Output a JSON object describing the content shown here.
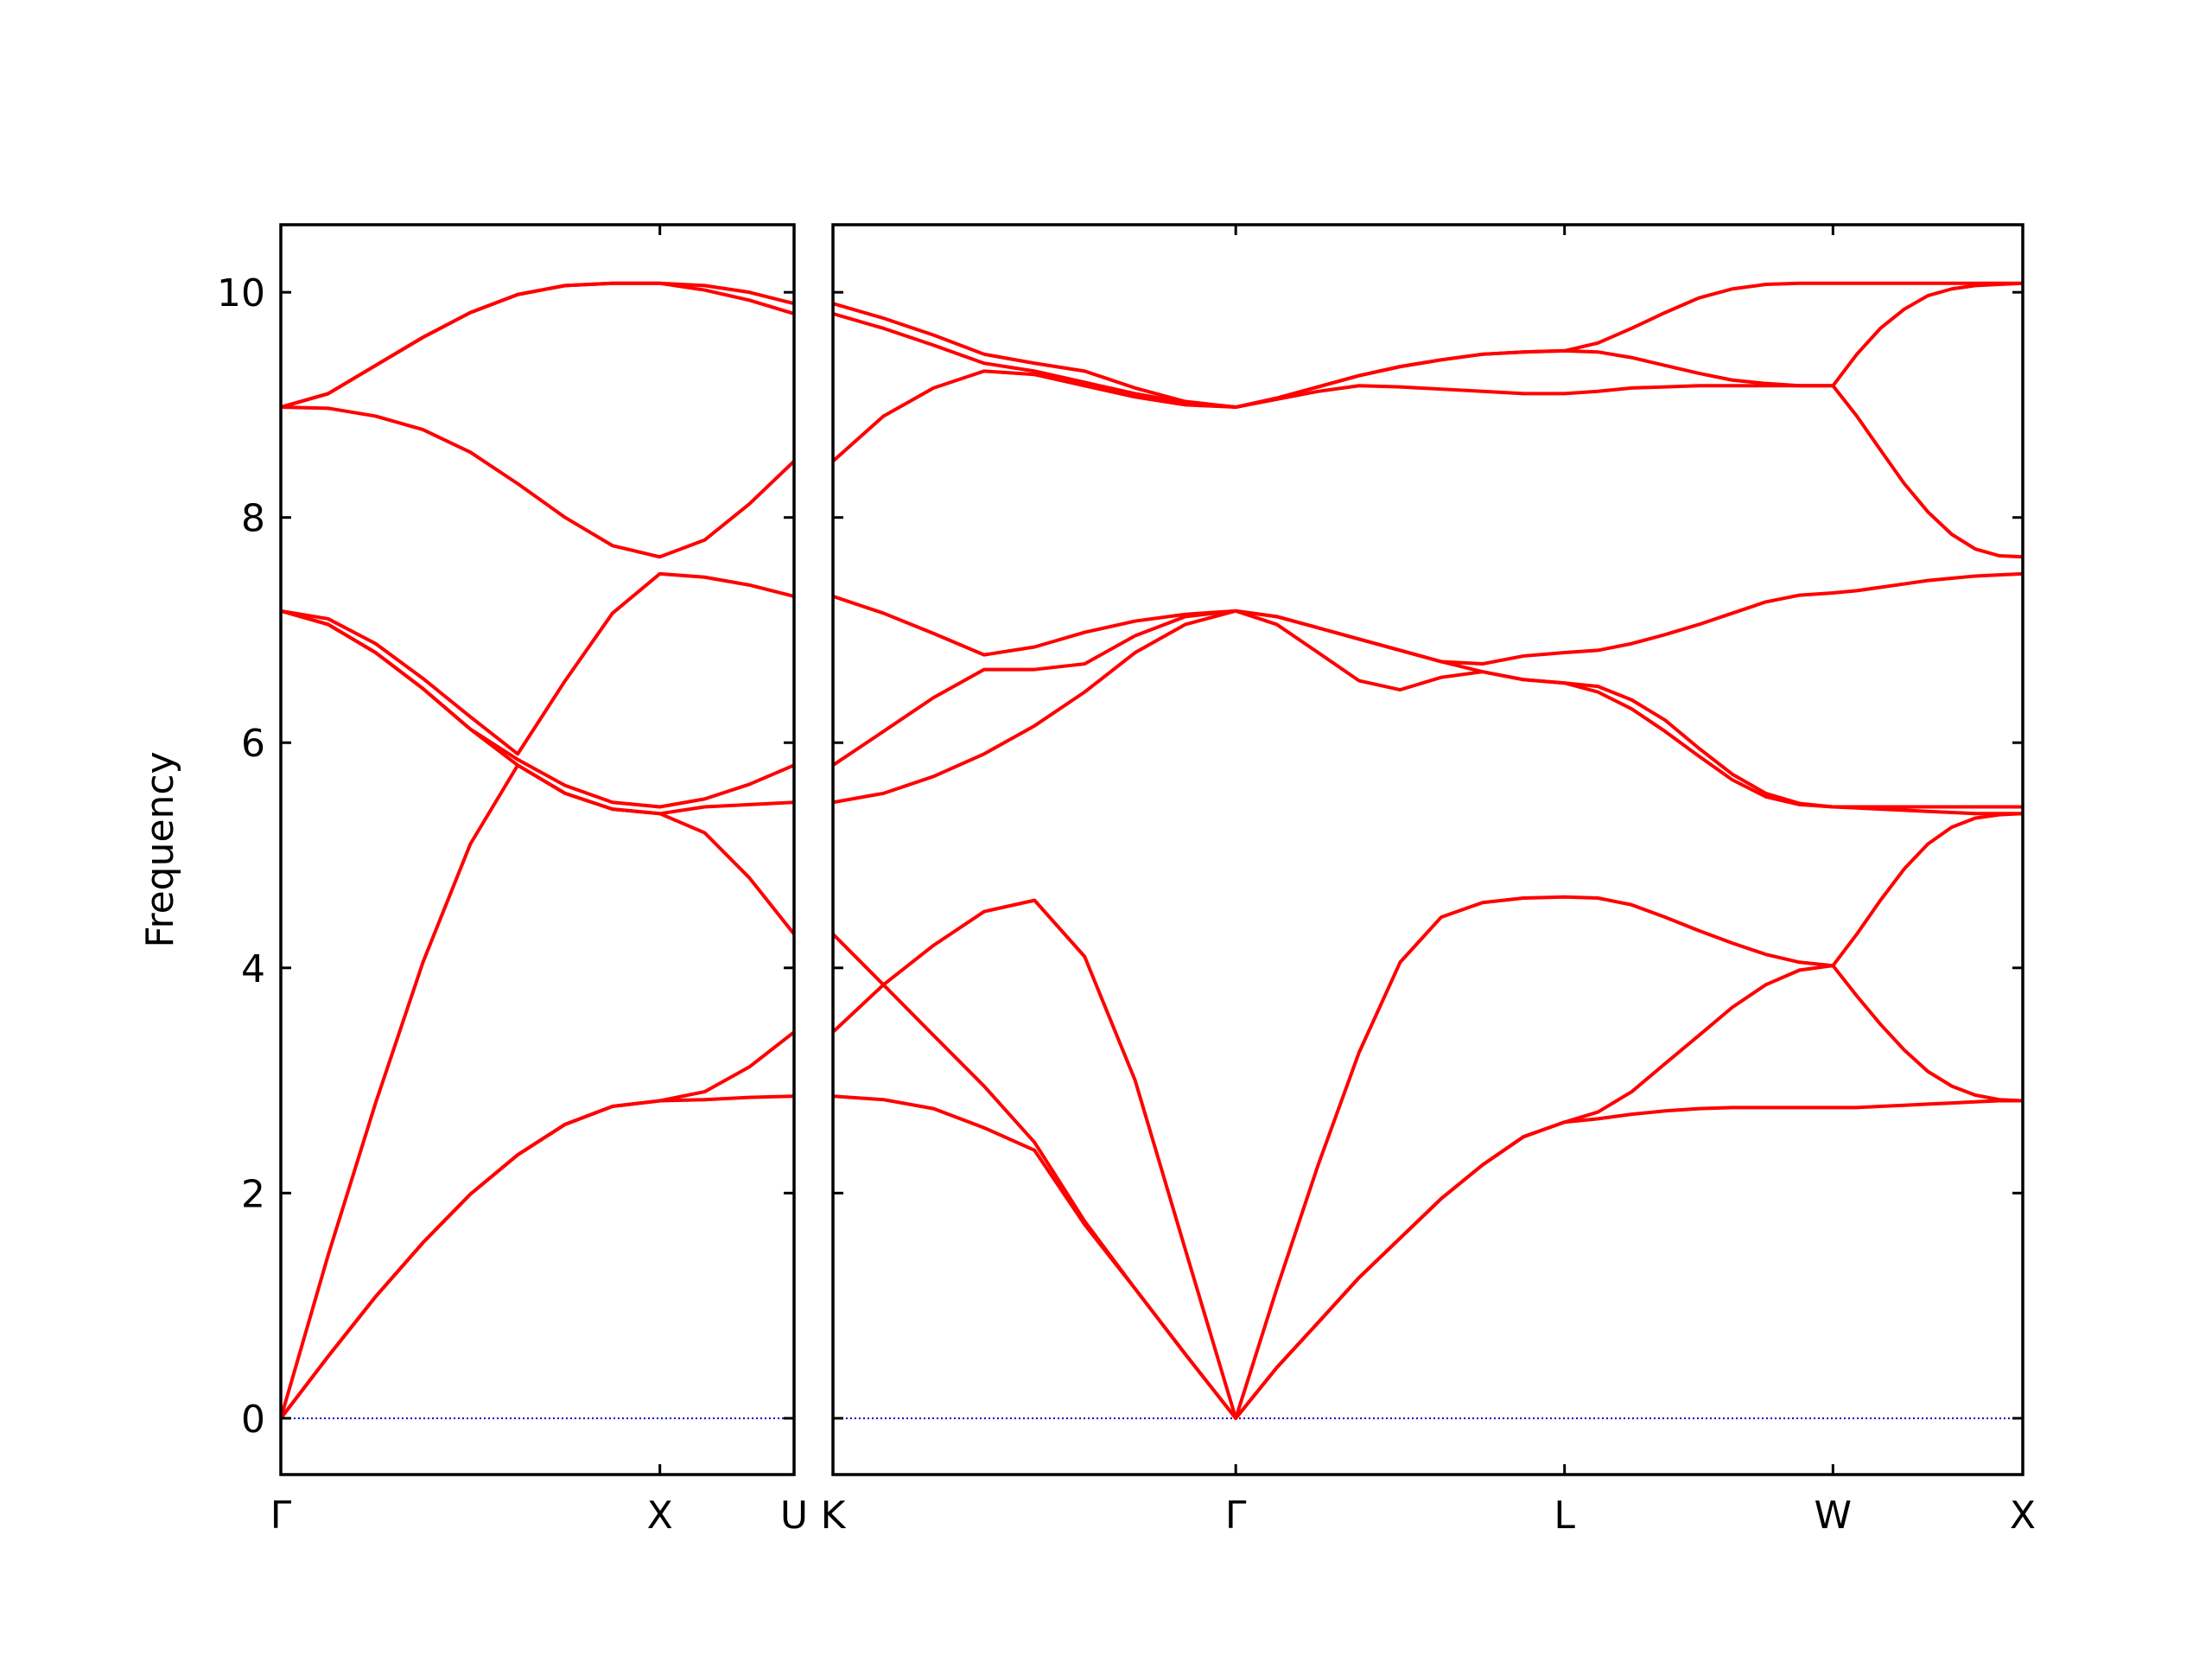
{
  "chart_data": [
    {
      "type": "line",
      "y_label": "Frequency",
      "x": [
        0,
        0.125,
        0.25,
        0.375,
        0.5,
        0.625,
        0.75,
        0.875,
        1,
        1.118,
        1.236,
        1.354
      ],
      "xlim": [
        0,
        1.354
      ],
      "xticks": [
        {
          "value": 0,
          "label": "Γ"
        },
        {
          "value": 1,
          "label": "X"
        },
        {
          "value": 1.354,
          "label": "U"
        }
      ],
      "ylim": [
        -0.5,
        10.6
      ],
      "yticks": [
        0,
        2,
        4,
        6,
        8,
        10
      ],
      "show_ytick_labels": true,
      "hlines": [
        {
          "value": 0,
          "color": "#0000cc",
          "style": "dotted"
        }
      ],
      "series": [
        {
          "color": "#ff0000",
          "values": [
            0,
            0.55,
            1.08,
            1.56,
            1.99,
            2.34,
            2.61,
            2.77,
            2.82,
            2.83,
            2.85,
            2.86
          ]
        },
        {
          "color": "#ff0000",
          "values": [
            0,
            0.55,
            1.08,
            1.56,
            1.99,
            2.34,
            2.61,
            2.77,
            2.82,
            2.9,
            3.12,
            3.43
          ]
        },
        {
          "color": "#ff0000",
          "values": [
            0,
            1.45,
            2.8,
            4.05,
            5.1,
            5.8,
            5.55,
            5.41,
            5.37,
            5.2,
            4.8,
            4.3
          ]
        },
        {
          "color": "#ff0000",
          "values": [
            7.17,
            7.05,
            6.8,
            6.48,
            6.12,
            5.8,
            5.55,
            5.41,
            5.37,
            5.43,
            5.45,
            5.47
          ]
        },
        {
          "color": "#ff0000",
          "values": [
            7.17,
            7.05,
            6.8,
            6.48,
            6.12,
            5.85,
            5.62,
            5.47,
            5.43,
            5.5,
            5.63,
            5.8
          ]
        },
        {
          "color": "#ff0000",
          "values": [
            7.17,
            7.1,
            6.88,
            6.57,
            6.23,
            5.9,
            6.55,
            7.15,
            7.5,
            7.47,
            7.4,
            7.3
          ]
        },
        {
          "color": "#ff0000",
          "values": [
            8.98,
            8.97,
            8.9,
            8.78,
            8.58,
            8.3,
            8.0,
            7.75,
            7.65,
            7.8,
            8.12,
            8.5
          ]
        },
        {
          "color": "#ff0000",
          "values": [
            8.98,
            9.1,
            9.35,
            9.6,
            9.82,
            9.98,
            10.06,
            10.08,
            10.08,
            10.02,
            9.93,
            9.81
          ]
        },
        {
          "color": "#ff0000",
          "values": [
            8.98,
            9.1,
            9.35,
            9.6,
            9.82,
            9.98,
            10.06,
            10.08,
            10.08,
            10.06,
            10.0,
            9.9
          ]
        }
      ]
    },
    {
      "type": "line",
      "x": [
        0,
        0.133,
        0.265,
        0.398,
        0.531,
        0.663,
        0.796,
        0.928,
        1.061,
        1.169,
        1.278,
        1.386,
        1.494,
        1.602,
        1.711,
        1.819,
        1.927,
        2.015,
        2.104,
        2.192,
        2.281,
        2.369,
        2.457,
        2.546,
        2.634,
        2.697,
        2.759,
        2.822,
        2.884,
        2.947,
        3.009,
        3.072,
        3.134
      ],
      "xlim": [
        0,
        3.134
      ],
      "xticks": [
        {
          "value": 0,
          "label": "K"
        },
        {
          "value": 1.061,
          "label": "Γ"
        },
        {
          "value": 1.927,
          "label": "L"
        },
        {
          "value": 2.634,
          "label": "W"
        },
        {
          "value": 3.134,
          "label": "X"
        }
      ],
      "ylim": [
        -0.5,
        10.6
      ],
      "yticks": [
        0,
        2,
        4,
        6,
        8,
        10
      ],
      "show_ytick_labels": false,
      "hlines": [
        {
          "value": 0,
          "color": "#0000cc",
          "style": "dotted"
        }
      ],
      "series": [
        {
          "color": "#ff0000",
          "values": [
            2.86,
            2.83,
            2.75,
            2.58,
            2.38,
            1.72,
            1.15,
            0.57,
            0,
            0.45,
            0.85,
            1.25,
            1.6,
            1.95,
            2.25,
            2.5,
            2.63,
            2.66,
            2.7,
            2.73,
            2.75,
            2.76,
            2.76,
            2.76,
            2.76,
            2.76,
            2.77,
            2.78,
            2.79,
            2.8,
            2.81,
            2.82,
            2.82
          ]
        },
        {
          "color": "#ff0000",
          "values": [
            3.43,
            3.85,
            3.4,
            2.95,
            2.45,
            1.75,
            1.15,
            0.57,
            0,
            0.45,
            0.85,
            1.25,
            1.6,
            1.95,
            2.25,
            2.5,
            2.63,
            2.72,
            2.9,
            3.15,
            3.4,
            3.65,
            3.85,
            3.98,
            4.02,
            3.75,
            3.5,
            3.27,
            3.08,
            2.95,
            2.87,
            2.83,
            2.82
          ]
        },
        {
          "color": "#ff0000",
          "values": [
            4.3,
            3.85,
            4.2,
            4.5,
            4.6,
            4.1,
            3.0,
            1.5,
            0,
            1.15,
            2.25,
            3.25,
            4.05,
            4.45,
            4.58,
            4.62,
            4.63,
            4.62,
            4.56,
            4.45,
            4.33,
            4.22,
            4.12,
            4.05,
            4.02,
            4.3,
            4.6,
            4.88,
            5.1,
            5.25,
            5.33,
            5.36,
            5.37
          ]
        },
        {
          "color": "#ff0000",
          "values": [
            5.47,
            5.55,
            5.7,
            5.9,
            6.15,
            6.45,
            6.8,
            7.05,
            7.17,
            7.05,
            6.8,
            6.55,
            6.47,
            6.58,
            6.63,
            6.56,
            6.53,
            6.45,
            6.3,
            6.1,
            5.88,
            5.67,
            5.52,
            5.45,
            5.43,
            5.42,
            5.41,
            5.4,
            5.39,
            5.38,
            5.37,
            5.37,
            5.37
          ]
        },
        {
          "color": "#ff0000",
          "values": [
            5.8,
            6.1,
            6.4,
            6.65,
            6.65,
            6.7,
            6.95,
            7.12,
            7.17,
            7.12,
            7.02,
            6.92,
            6.82,
            6.72,
            6.63,
            6.56,
            6.53,
            6.5,
            6.38,
            6.2,
            5.95,
            5.72,
            5.55,
            5.46,
            5.43,
            5.43,
            5.43,
            5.43,
            5.43,
            5.43,
            5.43,
            5.43,
            5.43
          ]
        },
        {
          "color": "#ff0000",
          "values": [
            7.3,
            7.15,
            6.97,
            6.78,
            6.85,
            6.98,
            7.08,
            7.14,
            7.17,
            7.12,
            7.02,
            6.92,
            6.82,
            6.72,
            6.7,
            6.77,
            6.8,
            6.82,
            6.88,
            6.96,
            7.05,
            7.15,
            7.25,
            7.31,
            7.33,
            7.35,
            7.38,
            7.41,
            7.44,
            7.46,
            7.48,
            7.49,
            7.5
          ]
        },
        {
          "color": "#ff0000",
          "values": [
            8.5,
            8.9,
            9.15,
            9.3,
            9.27,
            9.17,
            9.07,
            9.0,
            8.98,
            9.05,
            9.12,
            9.17,
            9.16,
            9.14,
            9.12,
            9.1,
            9.1,
            9.12,
            9.15,
            9.16,
            9.17,
            9.17,
            9.17,
            9.17,
            9.17,
            8.9,
            8.6,
            8.3,
            8.05,
            7.85,
            7.72,
            7.66,
            7.65
          ]
        },
        {
          "color": "#ff0000",
          "values": [
            9.81,
            9.68,
            9.53,
            9.37,
            9.3,
            9.2,
            9.1,
            9.02,
            8.98,
            9.06,
            9.16,
            9.26,
            9.34,
            9.4,
            9.45,
            9.47,
            9.48,
            9.47,
            9.42,
            9.35,
            9.28,
            9.22,
            9.19,
            9.17,
            9.17,
            9.45,
            9.68,
            9.85,
            9.97,
            10.03,
            10.06,
            10.07,
            10.08
          ]
        },
        {
          "color": "#ff0000",
          "values": [
            9.9,
            9.77,
            9.62,
            9.45,
            9.37,
            9.3,
            9.15,
            9.03,
            8.98,
            9.06,
            9.16,
            9.26,
            9.34,
            9.4,
            9.45,
            9.47,
            9.48,
            9.55,
            9.68,
            9.82,
            9.95,
            10.03,
            10.07,
            10.08,
            10.08,
            10.08,
            10.08,
            10.08,
            10.08,
            10.08,
            10.08,
            10.08,
            10.08
          ]
        }
      ]
    }
  ]
}
